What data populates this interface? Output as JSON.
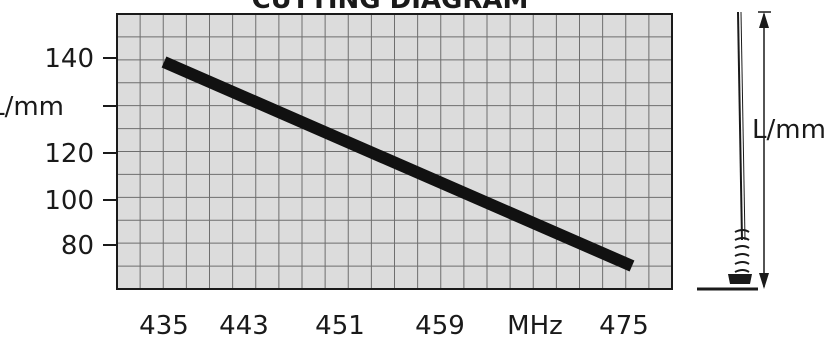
{
  "title_fragment": "CUTTING DIAGRAM",
  "chart_data": {
    "type": "line",
    "title": "CUTTING DIAGRAM",
    "xlabel": "MHz",
    "ylabel": "L/mm",
    "x_ticks": [
      435,
      443,
      451,
      459,
      "MHz",
      475
    ],
    "y_ticks": [
      140,
      "L/mm",
      120,
      100,
      80
    ],
    "xlim": [
      435,
      475
    ],
    "ylim": [
      70,
      140
    ],
    "grid": true,
    "series": [
      {
        "x": [
          435,
          475
        ],
        "y": [
          140,
          70
        ]
      }
    ]
  },
  "antenna": {
    "label": "L/mm"
  },
  "colors": {
    "grid_bg": "#dcdcdc",
    "grid_line": "#6e6e6e",
    "frame": "#1a1a1a",
    "line": "#111111"
  }
}
